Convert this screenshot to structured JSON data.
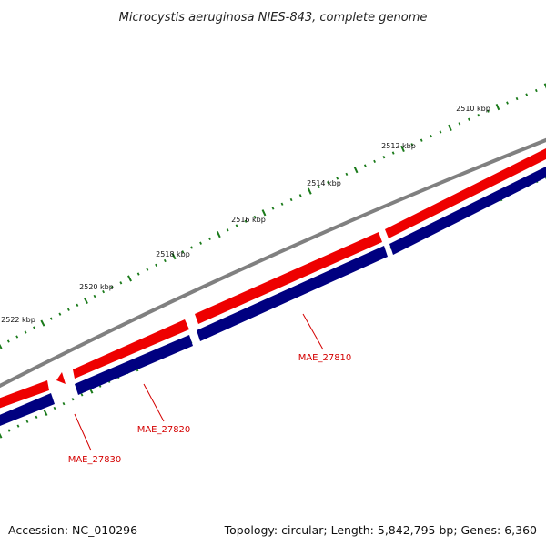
{
  "title": "Microcystis aeruginosa NIES-843, complete genome",
  "footer": {
    "accession": "Accession: NC_010296",
    "topology": "Topology: circular; Length: 5,842,795 bp; Genes: 6,360"
  },
  "tick_labels": [
    "2510 kbp",
    "2512 kbp",
    "2514 kbp",
    "2516 kbp",
    "2518 kbp",
    "2520 kbp",
    "2522 kbp"
  ],
  "genes": [
    {
      "name": "MAE_27810"
    },
    {
      "name": "MAE_27820"
    },
    {
      "name": "MAE_27830"
    }
  ],
  "colors": {
    "backbone": "#808080",
    "forward_feature": "#ee0000",
    "reverse_feature": "#000080",
    "tick": "#1a7a1a",
    "gene_label": "#d40000"
  }
}
